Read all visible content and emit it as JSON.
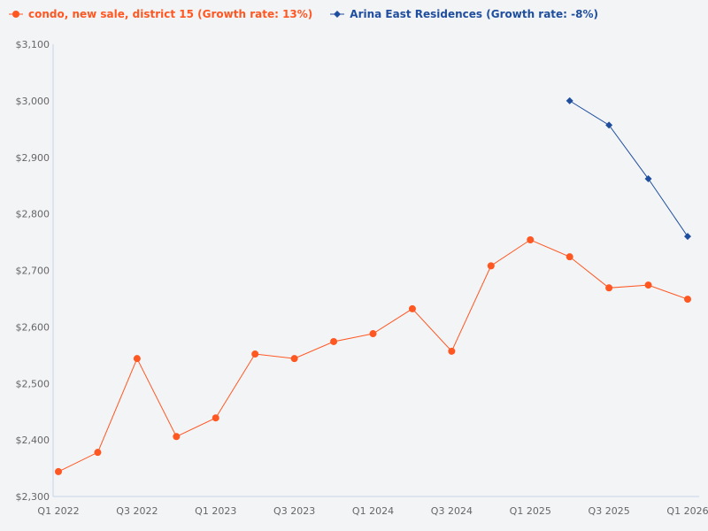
{
  "chart_data": {
    "type": "line",
    "title": "",
    "xlabel": "",
    "ylabel": "",
    "ylim": [
      2300,
      3100
    ],
    "yticks": [
      "$2,300",
      "$2,400",
      "$2,500",
      "$2,600",
      "$2,700",
      "$2,800",
      "$2,900",
      "$3,000",
      "$3,100"
    ],
    "ytick_values": [
      2300,
      2400,
      2500,
      2600,
      2700,
      2800,
      2900,
      3000,
      3100
    ],
    "x": [
      "Q1 2022",
      "Q2 2022",
      "Q3 2022",
      "Q4 2022",
      "Q1 2023",
      "Q2 2023",
      "Q3 2023",
      "Q4 2023",
      "Q1 2024",
      "Q2 2024",
      "Q3 2024",
      "Q4 2024",
      "Q1 2025",
      "Q2 2025",
      "Q3 2025",
      "Q4 2025",
      "Q1 2026"
    ],
    "xticks": [
      "Q1 2022",
      "Q3 2022",
      "Q1 2023",
      "Q3 2023",
      "Q1 2024",
      "Q3 2024",
      "Q1 2025",
      "Q3 2025",
      "Q1 2026"
    ],
    "grid": false,
    "legend": "top-left",
    "series": [
      {
        "name": "condo, new sale, district 15 (Growth rate: 13%)",
        "color": "#ff5722",
        "marker": "circle",
        "values": [
          2344,
          2378,
          2544,
          2406,
          2439,
          2552,
          2544,
          2574,
          2588,
          2632,
          2557,
          2708,
          2754,
          2724,
          2669,
          2674,
          2649
        ]
      },
      {
        "name": "Arina East Residences (Growth rate: -8%)",
        "color": "#1f4e9e",
        "marker": "diamond",
        "values": [
          null,
          null,
          null,
          null,
          null,
          null,
          null,
          null,
          null,
          null,
          null,
          null,
          null,
          3000,
          2957,
          2862,
          2760
        ]
      }
    ]
  }
}
